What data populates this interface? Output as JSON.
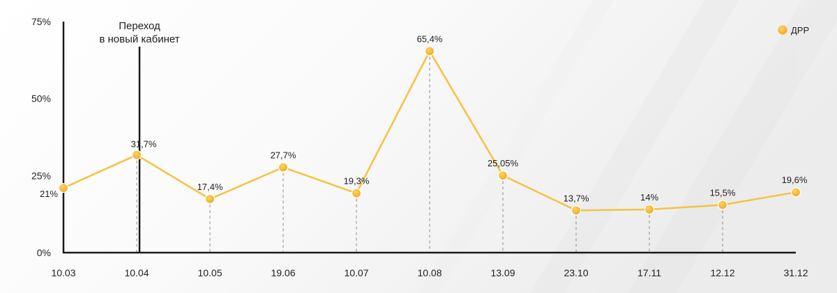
{
  "chart_data": {
    "type": "line",
    "categories": [
      "10.03",
      "10.04",
      "10.05",
      "19.06",
      "10.07",
      "10.08",
      "13.09",
      "23.10",
      "17.11",
      "12.12",
      "31.12"
    ],
    "series": [
      {
        "name": "ДРР",
        "values": [
          21,
          31.7,
          17.4,
          27.7,
          19.3,
          65.4,
          25.05,
          13.7,
          14,
          15.5,
          19.6
        ],
        "labels": [
          "21%",
          "31,7%",
          "17,4%",
          "27,7%",
          "19,3%",
          "65,4%",
          "25,05%",
          "13,7%",
          "14%",
          "15,5%",
          "19,6%"
        ]
      }
    ],
    "yticks": [
      {
        "value": 0,
        "label": "0%"
      },
      {
        "value": 25,
        "label": "25%"
      },
      {
        "value": 50,
        "label": "50%"
      },
      {
        "value": 75,
        "label": "75%"
      }
    ],
    "ylim": [
      0,
      75
    ],
    "grid": false,
    "legend_position": "top-right",
    "annotation": {
      "lines": [
        "Переход",
        "в новый кабинет"
      ],
      "at_category": "10.04"
    },
    "colors": {
      "series": "#f6c23e",
      "marker": "#f0b02a",
      "marker_stroke": "#ffffff",
      "axis": "#1a1a1a",
      "drop_line": "#8a8a8a",
      "background_light": "#ffffff",
      "background_dark": "#ececec"
    }
  }
}
